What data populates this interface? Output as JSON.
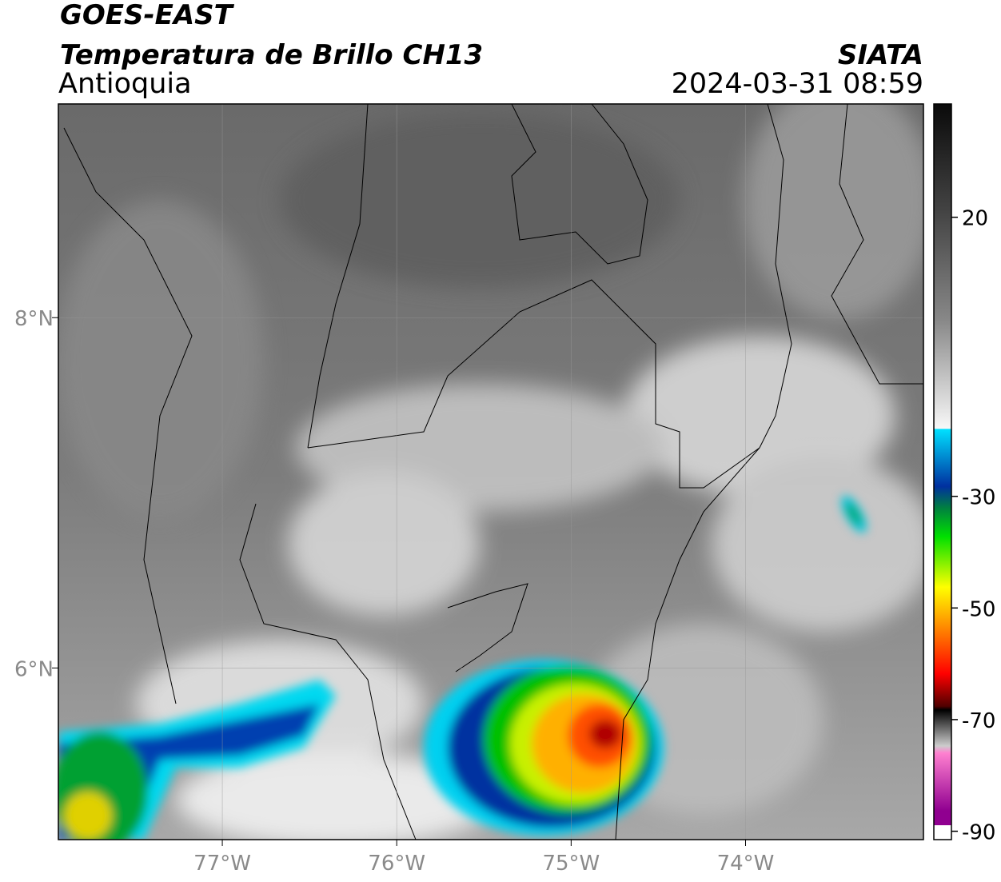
{
  "header": {
    "satellite": "GOES-EAST",
    "title": "Temperatura de Brillo CH13",
    "region": "Antioquia",
    "agency": "SIATA",
    "datetime": "2024-03-31 08:59"
  },
  "map": {
    "xlim": [
      -77.94,
      -72.98
    ],
    "ylim": [
      5.02,
      9.22
    ],
    "xticks": [
      {
        "value": -77,
        "label": "77°W"
      },
      {
        "value": -76,
        "label": "76°W"
      },
      {
        "value": -75,
        "label": "75°W"
      },
      {
        "value": -74,
        "label": "74°W"
      }
    ],
    "yticks": [
      {
        "value": 6,
        "label": "6°N"
      },
      {
        "value": 8,
        "label": "8°N"
      }
    ],
    "grid": true
  },
  "colorbar": {
    "lim": [
      -91.5,
      40.3
    ],
    "ticks": [
      20,
      -30,
      -50,
      -70,
      -90
    ]
  }
}
